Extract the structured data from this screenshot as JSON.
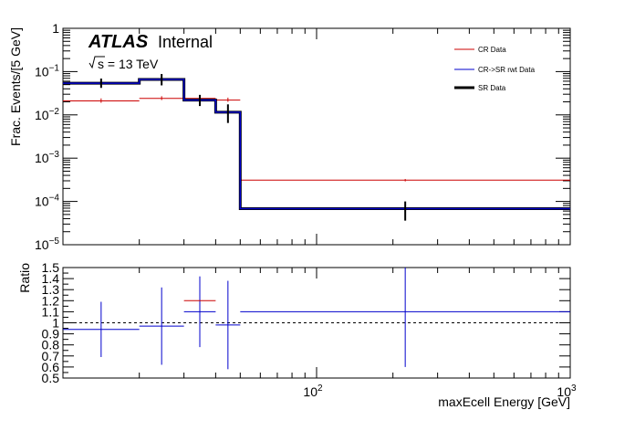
{
  "chart_data": [
    {
      "type": "line",
      "panel": "upper",
      "title": "",
      "xlabel": "",
      "ylabel": "Frac. Events/[5 GeV]",
      "yscale": "log",
      "xscale": "log",
      "ylim": [
        1e-05,
        1
      ],
      "y_ticks": [
        {
          "v": 1,
          "base": "1",
          "exp": ""
        },
        {
          "v": 0.1,
          "base": "10",
          "exp": "−1"
        },
        {
          "v": 0.01,
          "base": "10",
          "exp": "−2"
        },
        {
          "v": 0.001,
          "base": "10",
          "exp": "−3"
        },
        {
          "v": 0.0001,
          "base": "10",
          "exp": "−4"
        },
        {
          "v": 1e-05,
          "base": "10",
          "exp": "−5"
        }
      ],
      "atlas_label": "ATLAS",
      "atlas_sublabel": "Internal",
      "energy_label": "s = 13 TeV",
      "legend_position": "top-right",
      "bin_edges": [
        10,
        20,
        30,
        40,
        50,
        1000
      ],
      "series": [
        {
          "name": "CR Data",
          "color": "#cc0000",
          "values": [
            0.021,
            0.024,
            0.024,
            0.022,
            0.00031
          ],
          "errors_low": [
            0.002,
            0.002,
            0.002,
            0.002,
            2e-05
          ],
          "errors_high": [
            0.003,
            0.003,
            0.003,
            0.003,
            2e-05
          ]
        },
        {
          "name": "CR->SR rwt Data",
          "color": "#0000cc",
          "values": [
            0.054,
            0.066,
            0.022,
            0.0115,
            6.8e-05
          ],
          "errors_low": [
            0,
            0,
            0,
            0,
            0
          ],
          "errors_high": [
            0,
            0,
            0,
            0,
            0
          ]
        },
        {
          "name": "SR Data",
          "color": "#000000",
          "values": [
            0.054,
            0.066,
            0.022,
            0.0115,
            6.8e-05
          ],
          "errors_low": [
            0.012,
            0.018,
            0.006,
            0.005,
            3.2e-05
          ],
          "errors_high": [
            0.015,
            0.022,
            0.007,
            0.006,
            3.2e-05
          ]
        }
      ]
    },
    {
      "type": "scatter",
      "panel": "lower",
      "title": "",
      "xlabel": "maxEcell Energy [GeV]",
      "ylabel": "Ratio",
      "ylim": [
        0.5,
        1.5
      ],
      "y_ticks": [
        0.5,
        0.6,
        0.7,
        0.8,
        0.9,
        1,
        1.1,
        1.2,
        1.3,
        1.4,
        1.5
      ],
      "y_tick_labels": [
        "0.5",
        "0.6",
        "0.7",
        "0.8",
        "0.9",
        "1",
        "1.1",
        "1.2",
        "1.3",
        "1.4",
        "1.5"
      ],
      "x_ticks": [
        {
          "v": 100,
          "base": "10",
          "exp": "2"
        },
        {
          "v": 1000,
          "base": "10",
          "exp": "3"
        }
      ],
      "xlim": [
        10,
        1000
      ],
      "reference_line": 1,
      "bin_edges": [
        10,
        20,
        30,
        40,
        50,
        1000
      ],
      "series": [
        {
          "name": "",
          "color": "#cc0000",
          "values": [
            null,
            null,
            1.2,
            null,
            1.1
          ],
          "errors": [
            0,
            0,
            0,
            0,
            0
          ]
        },
        {
          "name": "",
          "color": "#0000cc",
          "values": [
            0.94,
            0.97,
            1.1,
            0.98,
            1.1
          ],
          "errors": [
            0.25,
            0.35,
            0.32,
            0.4,
            0.5
          ]
        }
      ]
    }
  ]
}
